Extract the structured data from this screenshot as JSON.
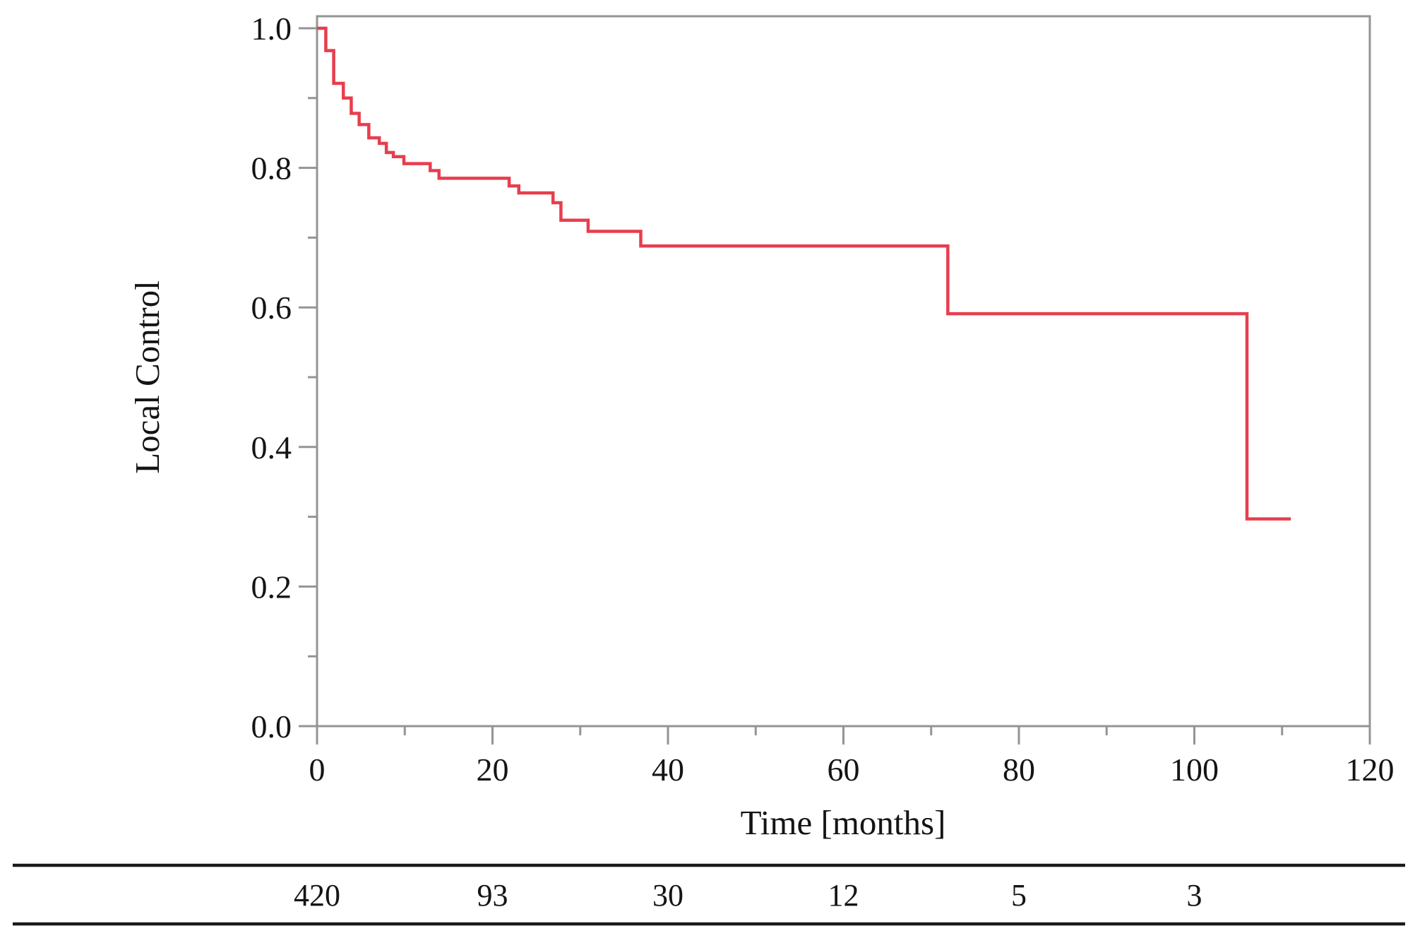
{
  "chart_data": {
    "type": "line",
    "subtype": "kaplan-meier-step-curve",
    "title": "",
    "xlabel": "Time [months]",
    "ylabel": "Local Control",
    "xlim": [
      0,
      120
    ],
    "ylim": [
      0.0,
      1.0
    ],
    "grid": false,
    "legend_position": "none",
    "x_major_ticks": [
      {
        "v": 0,
        "label": "0"
      },
      {
        "v": 20,
        "label": "20"
      },
      {
        "v": 40,
        "label": "40"
      },
      {
        "v": 60,
        "label": "60"
      },
      {
        "v": 80,
        "label": "80"
      },
      {
        "v": 100,
        "label": "100"
      },
      {
        "v": 120,
        "label": "120"
      }
    ],
    "x_minor_ticks": [
      10,
      30,
      50,
      70,
      90,
      110
    ],
    "y_major_ticks": [
      {
        "v": 0.0,
        "label": "0.0"
      },
      {
        "v": 0.2,
        "label": "0.2"
      },
      {
        "v": 0.4,
        "label": "0.4"
      },
      {
        "v": 0.6,
        "label": "0.6"
      },
      {
        "v": 0.8,
        "label": "0.8"
      },
      {
        "v": 1.0,
        "label": "1.0"
      }
    ],
    "y_minor_ticks": [
      0.1,
      0.3,
      0.5,
      0.7,
      0.9
    ],
    "series": [
      {
        "name": "Local Control",
        "color": "#e73e4e",
        "start": {
          "time": 0,
          "value": 1.0
        },
        "steps": [
          [
            1.0,
            0.968
          ],
          [
            1.9,
            0.921
          ],
          [
            3.0,
            0.9
          ],
          [
            3.9,
            0.878
          ],
          [
            4.8,
            0.862
          ],
          [
            5.9,
            0.843
          ],
          [
            7.1,
            0.835
          ],
          [
            7.9,
            0.822
          ],
          [
            8.7,
            0.816
          ],
          [
            9.9,
            0.806
          ],
          [
            12.9,
            0.796
          ],
          [
            13.9,
            0.785
          ],
          [
            21.9,
            0.774
          ],
          [
            23.0,
            0.764
          ],
          [
            26.9,
            0.75
          ],
          [
            27.8,
            0.725
          ],
          [
            30.9,
            0.709
          ],
          [
            36.9,
            0.688
          ],
          [
            71.9,
            0.591
          ],
          [
            106.0,
            0.297
          ]
        ],
        "end_time": 111
      }
    ],
    "at_risk_table": {
      "times": [
        0,
        20,
        40,
        60,
        80,
        100
      ],
      "counts": [
        "420",
        "93",
        "30",
        "12",
        "5",
        "3"
      ]
    }
  },
  "colors": {
    "curve": "#e73e4e",
    "axis": "#949494",
    "text": "#141414",
    "rule": "#1a1a1a"
  }
}
